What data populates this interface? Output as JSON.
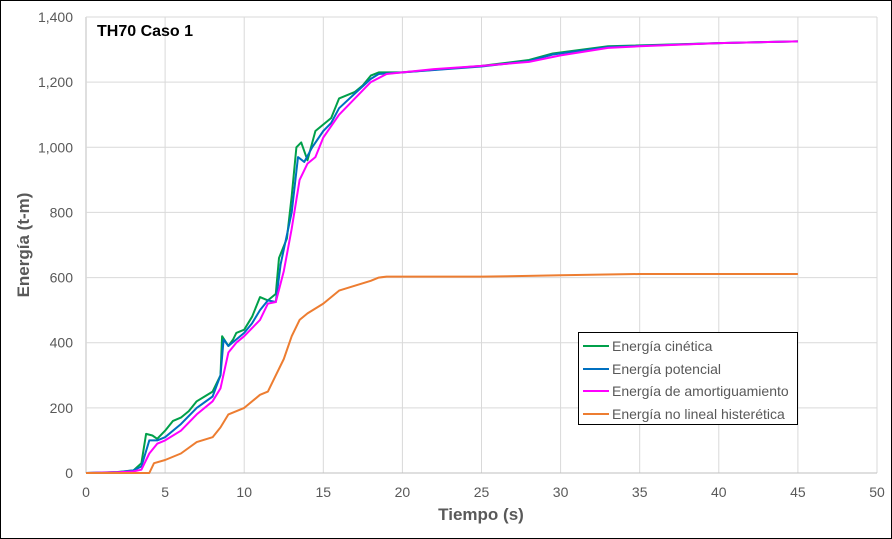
{
  "chart_data": {
    "type": "line",
    "title": "TH70 Caso 1",
    "xlabel": "Tiempo (s)",
    "ylabel": "Energía (t-m)",
    "xlim": [
      0,
      50
    ],
    "ylim": [
      0,
      1400
    ],
    "xticks": [
      "0",
      "5",
      "10",
      "15",
      "20",
      "25",
      "30",
      "35",
      "40",
      "45",
      "50"
    ],
    "yticks": [
      "0",
      "200",
      "400",
      "600",
      "800",
      "1,000",
      "1,200",
      "1,400"
    ],
    "grid": true,
    "legend_position": "bottom-right",
    "series": [
      {
        "name": "Energía cinética",
        "color": "#00a04a",
        "points": [
          [
            0,
            0
          ],
          [
            2,
            3
          ],
          [
            3,
            8
          ],
          [
            3.5,
            30
          ],
          [
            3.8,
            120
          ],
          [
            4.2,
            115
          ],
          [
            4.5,
            105
          ],
          [
            5,
            130
          ],
          [
            5.5,
            160
          ],
          [
            6,
            170
          ],
          [
            6.5,
            190
          ],
          [
            7,
            220
          ],
          [
            7.5,
            235
          ],
          [
            8,
            250
          ],
          [
            8.5,
            300
          ],
          [
            8.6,
            420
          ],
          [
            9,
            390
          ],
          [
            9.3,
            410
          ],
          [
            9.5,
            430
          ],
          [
            10,
            440
          ],
          [
            10.5,
            480
          ],
          [
            11,
            540
          ],
          [
            11.5,
            530
          ],
          [
            12,
            550
          ],
          [
            12.2,
            660
          ],
          [
            12.7,
            720
          ],
          [
            13,
            850
          ],
          [
            13.3,
            1000
          ],
          [
            13.6,
            1015
          ],
          [
            14,
            960
          ],
          [
            14.5,
            1050
          ],
          [
            15,
            1070
          ],
          [
            15.5,
            1090
          ],
          [
            16,
            1150
          ],
          [
            17,
            1170
          ],
          [
            17.5,
            1190
          ],
          [
            18,
            1220
          ],
          [
            18.5,
            1230
          ],
          [
            20,
            1230
          ],
          [
            25,
            1250
          ],
          [
            28,
            1268
          ],
          [
            29.5,
            1288
          ],
          [
            33,
            1310
          ],
          [
            40,
            1320
          ],
          [
            45,
            1325
          ]
        ]
      },
      {
        "name": "Energía potencial",
        "color": "#0070c0",
        "points": [
          [
            0,
            0
          ],
          [
            2,
            2
          ],
          [
            3,
            8
          ],
          [
            3.5,
            20
          ],
          [
            4,
            100
          ],
          [
            4.5,
            100
          ],
          [
            5,
            110
          ],
          [
            6,
            150
          ],
          [
            7,
            200
          ],
          [
            8,
            235
          ],
          [
            8.5,
            300
          ],
          [
            8.7,
            410
          ],
          [
            9,
            390
          ],
          [
            10,
            430
          ],
          [
            10.5,
            460
          ],
          [
            11,
            500
          ],
          [
            11.5,
            530
          ],
          [
            12,
            525
          ],
          [
            12.3,
            640
          ],
          [
            13,
            800
          ],
          [
            13.4,
            970
          ],
          [
            13.8,
            955
          ],
          [
            14.3,
            1000
          ],
          [
            15,
            1050
          ],
          [
            15.5,
            1075
          ],
          [
            16,
            1120
          ],
          [
            17,
            1165
          ],
          [
            18,
            1210
          ],
          [
            18.5,
            1225
          ],
          [
            20,
            1230
          ],
          [
            25,
            1248
          ],
          [
            28,
            1265
          ],
          [
            29.5,
            1285
          ],
          [
            33,
            1308
          ],
          [
            40,
            1320
          ],
          [
            45,
            1325
          ]
        ]
      },
      {
        "name": "Energía de amortiguamiento",
        "color": "#ff00ff",
        "points": [
          [
            0,
            0
          ],
          [
            2,
            2
          ],
          [
            3,
            5
          ],
          [
            3.5,
            10
          ],
          [
            4,
            60
          ],
          [
            4.5,
            90
          ],
          [
            5,
            100
          ],
          [
            6,
            130
          ],
          [
            7,
            180
          ],
          [
            8,
            220
          ],
          [
            8.5,
            260
          ],
          [
            9,
            370
          ],
          [
            9.5,
            400
          ],
          [
            10,
            420
          ],
          [
            11,
            470
          ],
          [
            11.5,
            520
          ],
          [
            12,
            525
          ],
          [
            12.5,
            620
          ],
          [
            13,
            750
          ],
          [
            13.5,
            900
          ],
          [
            14,
            950
          ],
          [
            14.5,
            970
          ],
          [
            15,
            1030
          ],
          [
            16,
            1100
          ],
          [
            17,
            1150
          ],
          [
            18,
            1200
          ],
          [
            19,
            1225
          ],
          [
            20,
            1230
          ],
          [
            22,
            1240
          ],
          [
            25,
            1250
          ],
          [
            28,
            1262
          ],
          [
            30,
            1282
          ],
          [
            33,
            1305
          ],
          [
            35,
            1310
          ],
          [
            40,
            1320
          ],
          [
            45,
            1325
          ]
        ]
      },
      {
        "name": "Energía no lineal histerética",
        "color": "#ed7d31",
        "points": [
          [
            0,
            0
          ],
          [
            4,
            0
          ],
          [
            4.3,
            30
          ],
          [
            5,
            40
          ],
          [
            6,
            60
          ],
          [
            7,
            95
          ],
          [
            8,
            110
          ],
          [
            8.5,
            140
          ],
          [
            9,
            180
          ],
          [
            10,
            200
          ],
          [
            11,
            240
          ],
          [
            11.5,
            250
          ],
          [
            12,
            300
          ],
          [
            12.5,
            350
          ],
          [
            13,
            420
          ],
          [
            13.5,
            470
          ],
          [
            14,
            490
          ],
          [
            15,
            520
          ],
          [
            16,
            560
          ],
          [
            17,
            575
          ],
          [
            18,
            590
          ],
          [
            18.5,
            600
          ],
          [
            19,
            603
          ],
          [
            25,
            603
          ],
          [
            28,
            605
          ],
          [
            30,
            607
          ],
          [
            35,
            611
          ],
          [
            45,
            611
          ]
        ]
      }
    ]
  }
}
